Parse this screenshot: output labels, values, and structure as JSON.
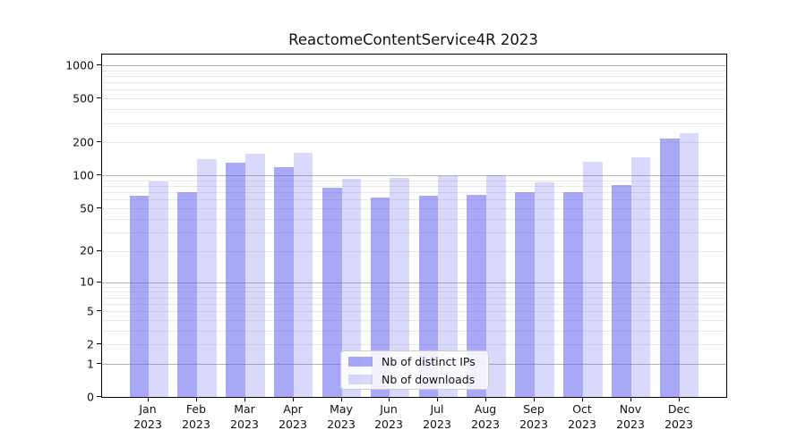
{
  "title": "ReactomeContentService4R 2023",
  "legend": {
    "items": [
      {
        "label": "Nb of distinct IPs",
        "color": "rgba(95,95,240,0.54)",
        "color_hex": "#a9a9f6"
      },
      {
        "label": "Nb of downloads",
        "color": "rgba(95,95,240,0.24)",
        "color_hex": "#d9d9fb"
      }
    ]
  },
  "y_axis": {
    "tick_labels": [
      "0",
      "1",
      "2",
      "5",
      "10",
      "20",
      "50",
      "100",
      "200",
      "500",
      "1000"
    ]
  },
  "x_axis": {
    "months": [
      "Jan",
      "Feb",
      "Mar",
      "Apr",
      "May",
      "Jun",
      "Jul",
      "Aug",
      "Sep",
      "Oct",
      "Nov",
      "Dec"
    ],
    "year": "2023"
  },
  "colors": {
    "bar_base": "#5f5ff0",
    "ips_bar": "rgba(95,95,240,0.54)",
    "downloads_bar": "rgba(95,95,240,0.24)",
    "major_grid": "#b3b3b3",
    "minor_grid": "#e9e9e9",
    "spine": "#000000",
    "background": "#ffffff"
  },
  "chart_data": {
    "type": "bar",
    "title": "ReactomeContentService4R 2023",
    "categories": [
      "Jan 2023",
      "Feb 2023",
      "Mar 2023",
      "Apr 2023",
      "May 2023",
      "Jun 2023",
      "Jul 2023",
      "Aug 2023",
      "Sep 2023",
      "Oct 2023",
      "Nov 2023",
      "Dec 2023"
    ],
    "series": [
      {
        "name": "Nb of distinct IPs",
        "values": [
          65,
          70,
          131,
          120,
          77,
          63,
          65,
          66,
          70,
          70,
          82,
          215
        ]
      },
      {
        "name": "Nb of downloads",
        "values": [
          89,
          142,
          159,
          160,
          93,
          96,
          98,
          100,
          86,
          133,
          146,
          244
        ]
      }
    ],
    "xlabel": "",
    "ylabel": "",
    "yscale": "log1p",
    "ylim": [
      0,
      1230
    ],
    "yticks": [
      0,
      1,
      2,
      5,
      10,
      20,
      50,
      100,
      200,
      500,
      1000
    ],
    "major_grid_values": [
      1,
      10,
      100,
      1000
    ],
    "minor_grid_values": [
      2,
      3,
      4,
      5,
      6,
      7,
      8,
      9,
      20,
      30,
      40,
      50,
      60,
      70,
      80,
      90,
      200,
      300,
      400,
      500,
      600,
      700,
      800,
      900
    ],
    "grid": true,
    "legend_position": "lower center"
  }
}
